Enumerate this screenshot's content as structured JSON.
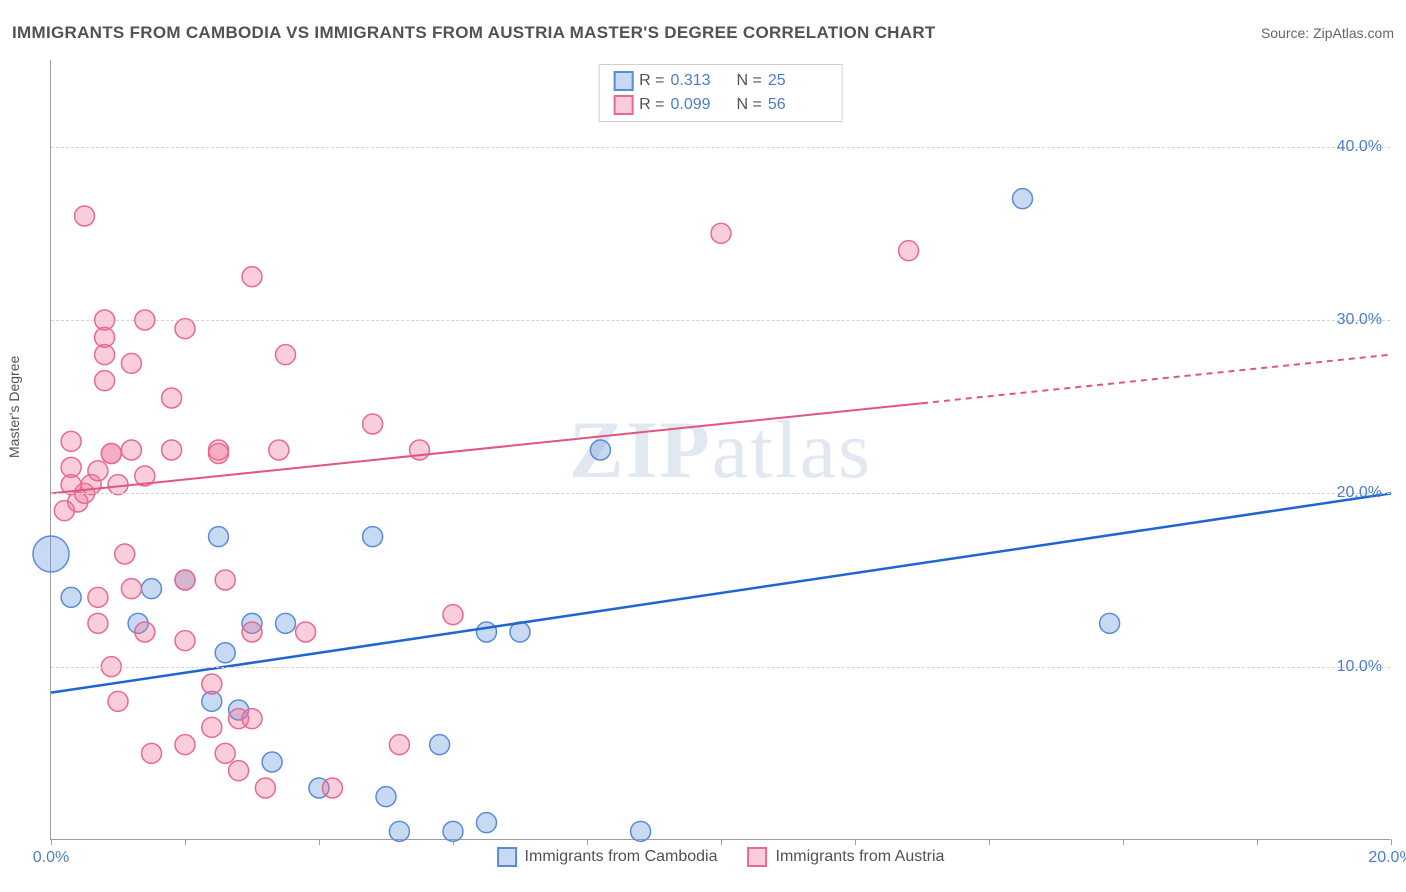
{
  "header": {
    "title": "IMMIGRANTS FROM CAMBODIA VS IMMIGRANTS FROM AUSTRIA MASTER'S DEGREE CORRELATION CHART",
    "source_prefix": "Source: ",
    "source": "ZipAtlas.com"
  },
  "chart": {
    "type": "scatter",
    "ylabel": "Master's Degree",
    "watermark": "ZIPatlas",
    "xlim": [
      0,
      20
    ],
    "ylim": [
      0,
      45
    ],
    "grid_color": "#d3d3d3",
    "axis_color": "#9e9e9e",
    "background_color": "#ffffff",
    "yticks": [
      {
        "v": 10,
        "label": "10.0%"
      },
      {
        "v": 20,
        "label": "20.0%"
      },
      {
        "v": 30,
        "label": "30.0%"
      },
      {
        "v": 40,
        "label": "40.0%"
      }
    ],
    "xticks": [
      {
        "v": 0,
        "label": "0.0%"
      },
      {
        "v": 2,
        "label": ""
      },
      {
        "v": 4,
        "label": ""
      },
      {
        "v": 6,
        "label": ""
      },
      {
        "v": 8,
        "label": ""
      },
      {
        "v": 10,
        "label": ""
      },
      {
        "v": 12,
        "label": ""
      },
      {
        "v": 14,
        "label": ""
      },
      {
        "v": 16,
        "label": ""
      },
      {
        "v": 18,
        "label": ""
      },
      {
        "v": 20,
        "label": "20.0%"
      }
    ],
    "series": [
      {
        "name": "Immigrants from Cambodia",
        "color_fill": "rgba(96,150,220,0.35)",
        "color_stroke": "#5a8cd6",
        "R": "0.313",
        "N": "25",
        "trend": {
          "y_at_x0": 8.5,
          "y_at_x20": 20.0,
          "solid_until_x": 20,
          "stroke": "#1f66d0",
          "width": 2.5
        },
        "marker_r": 10,
        "points": [
          {
            "x": 0.0,
            "y": 16.5,
            "r": 18
          },
          {
            "x": 0.3,
            "y": 14.0
          },
          {
            "x": 1.5,
            "y": 14.5
          },
          {
            "x": 2.0,
            "y": 15.0
          },
          {
            "x": 1.3,
            "y": 12.5
          },
          {
            "x": 2.5,
            "y": 17.5
          },
          {
            "x": 3.0,
            "y": 12.5
          },
          {
            "x": 2.6,
            "y": 10.8
          },
          {
            "x": 3.5,
            "y": 12.5
          },
          {
            "x": 2.4,
            "y": 8.0
          },
          {
            "x": 2.8,
            "y": 7.5
          },
          {
            "x": 3.3,
            "y": 4.5
          },
          {
            "x": 4.0,
            "y": 3.0
          },
          {
            "x": 4.8,
            "y": 17.5
          },
          {
            "x": 5.0,
            "y": 2.5
          },
          {
            "x": 5.2,
            "y": 0.5
          },
          {
            "x": 5.8,
            "y": 5.5
          },
          {
            "x": 6.0,
            "y": 0.5
          },
          {
            "x": 6.5,
            "y": 1.0
          },
          {
            "x": 6.5,
            "y": 12.0
          },
          {
            "x": 7.0,
            "y": 12.0
          },
          {
            "x": 8.2,
            "y": 22.5
          },
          {
            "x": 8.8,
            "y": 0.5
          },
          {
            "x": 14.5,
            "y": 37.0
          },
          {
            "x": 15.8,
            "y": 12.5
          }
        ]
      },
      {
        "name": "Immigrants from Austria",
        "color_fill": "rgba(238,115,150,0.35)",
        "color_stroke": "#e76a93",
        "R": "0.099",
        "N": "56",
        "trend": {
          "y_at_x0": 20.0,
          "y_at_x20": 28.0,
          "solid_until_x": 13,
          "stroke": "#e2557f",
          "width": 2
        },
        "marker_r": 10,
        "points": [
          {
            "x": 0.3,
            "y": 23.0
          },
          {
            "x": 0.3,
            "y": 21.5
          },
          {
            "x": 0.3,
            "y": 20.5
          },
          {
            "x": 0.5,
            "y": 20.0
          },
          {
            "x": 0.4,
            "y": 19.5
          },
          {
            "x": 0.2,
            "y": 19.0
          },
          {
            "x": 0.6,
            "y": 20.5
          },
          {
            "x": 0.7,
            "y": 21.3
          },
          {
            "x": 0.5,
            "y": 36.0
          },
          {
            "x": 0.8,
            "y": 30.0
          },
          {
            "x": 0.8,
            "y": 29.0
          },
          {
            "x": 0.8,
            "y": 28.0
          },
          {
            "x": 0.8,
            "y": 26.5
          },
          {
            "x": 0.7,
            "y": 14.0
          },
          {
            "x": 0.7,
            "y": 12.5
          },
          {
            "x": 0.9,
            "y": 10.0
          },
          {
            "x": 0.9,
            "y": 22.3
          },
          {
            "x": 0.9,
            "y": 22.3
          },
          {
            "x": 1.1,
            "y": 16.5
          },
          {
            "x": 1.0,
            "y": 20.5
          },
          {
            "x": 1.2,
            "y": 22.5
          },
          {
            "x": 1.2,
            "y": 27.5
          },
          {
            "x": 1.2,
            "y": 14.5
          },
          {
            "x": 1.0,
            "y": 8.0
          },
          {
            "x": 1.4,
            "y": 30.0
          },
          {
            "x": 1.4,
            "y": 21.0
          },
          {
            "x": 1.4,
            "y": 12.0
          },
          {
            "x": 1.5,
            "y": 5.0
          },
          {
            "x": 1.8,
            "y": 25.5
          },
          {
            "x": 1.8,
            "y": 22.5
          },
          {
            "x": 2.0,
            "y": 15.0
          },
          {
            "x": 2.0,
            "y": 11.5
          },
          {
            "x": 2.0,
            "y": 5.5
          },
          {
            "x": 2.0,
            "y": 29.5
          },
          {
            "x": 2.4,
            "y": 9.0
          },
          {
            "x": 2.4,
            "y": 6.5
          },
          {
            "x": 2.5,
            "y": 22.5
          },
          {
            "x": 2.5,
            "y": 22.3
          },
          {
            "x": 2.6,
            "y": 5.0
          },
          {
            "x": 2.6,
            "y": 15.0
          },
          {
            "x": 2.8,
            "y": 7.0
          },
          {
            "x": 2.8,
            "y": 4.0
          },
          {
            "x": 3.0,
            "y": 7.0
          },
          {
            "x": 3.0,
            "y": 12.0
          },
          {
            "x": 3.0,
            "y": 32.5
          },
          {
            "x": 3.2,
            "y": 3.0
          },
          {
            "x": 3.4,
            "y": 22.5
          },
          {
            "x": 3.5,
            "y": 28.0
          },
          {
            "x": 3.8,
            "y": 12.0
          },
          {
            "x": 4.2,
            "y": 3.0
          },
          {
            "x": 4.8,
            "y": 24.0
          },
          {
            "x": 5.2,
            "y": 5.5
          },
          {
            "x": 5.5,
            "y": 22.5
          },
          {
            "x": 6.0,
            "y": 13.0
          },
          {
            "x": 10.0,
            "y": 35.0
          },
          {
            "x": 12.8,
            "y": 34.0
          }
        ]
      }
    ],
    "legend_top": {
      "R_label": "R  =",
      "N_label": "N  ="
    },
    "legend_bottom_labels": [
      "Immigrants from Cambodia",
      "Immigrants from Austria"
    ]
  }
}
